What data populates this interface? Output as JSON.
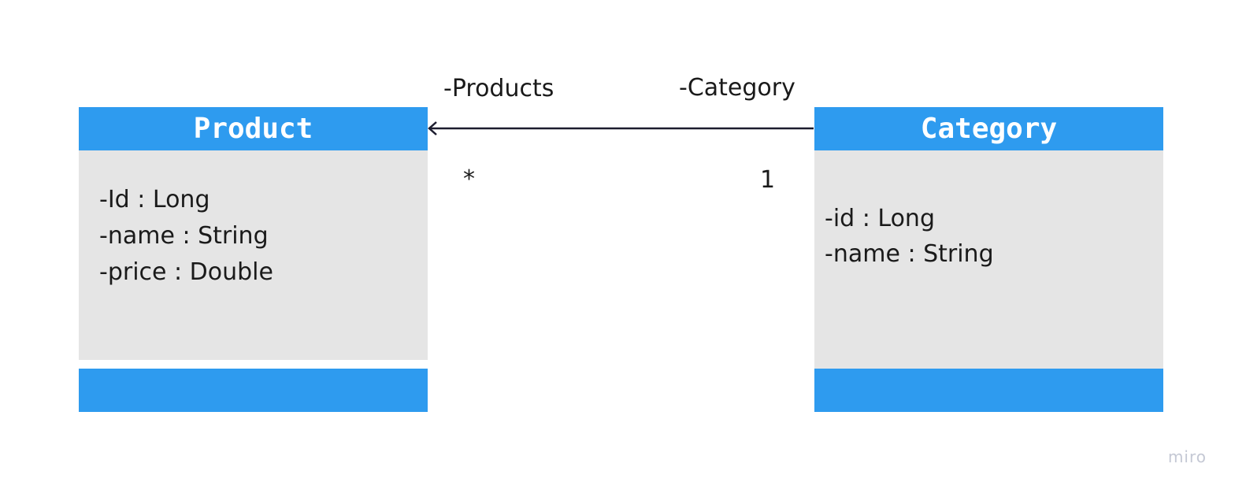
{
  "classes": [
    {
      "name": "Product",
      "attributes": [
        "-Id : Long",
        "-name : String",
        "-price : Double"
      ]
    },
    {
      "name": "Category",
      "attributes": [
        "-id : Long",
        "-name : String"
      ]
    }
  ],
  "association": {
    "from": "Category",
    "to": "Product",
    "navigable_to": "Product",
    "product_end_role": "-Products",
    "category_end_role": "-Category",
    "product_end_multiplicity": "*",
    "category_end_multiplicity": "1"
  },
  "colors": {
    "class_header": "#2e9bef",
    "class_body": "#e5e5e5",
    "line": "#1c1c2e"
  },
  "watermark": "miro"
}
